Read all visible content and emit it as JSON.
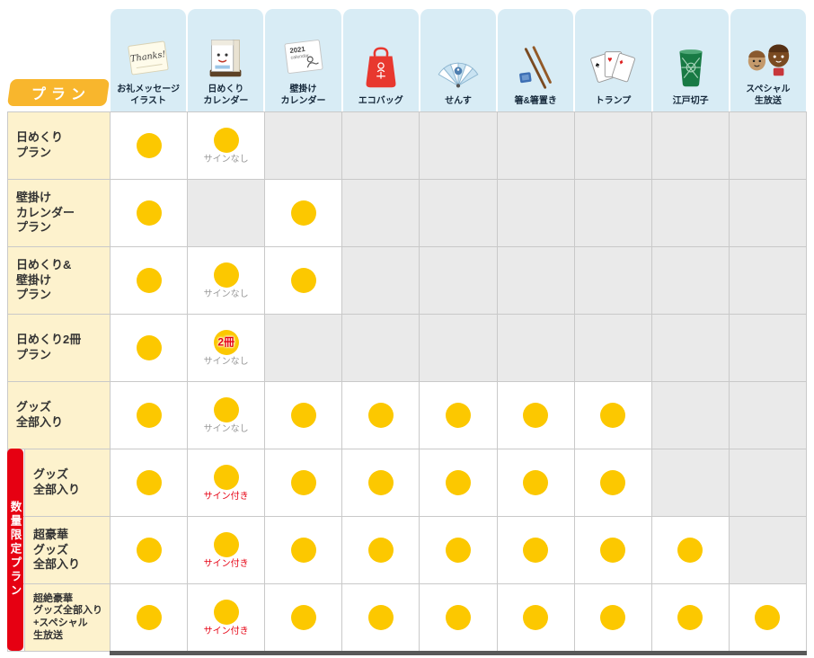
{
  "colors": {
    "dot_yellow": "#FCC800",
    "header_blue": "#D8ECF5",
    "plan_yellow": "#FDF2CD",
    "badge_orange": "#F8B62D",
    "limited_red": "#E60012",
    "empty_gray": "#EAEAEA",
    "note_gray": "#999999",
    "note_red": "#E60012"
  },
  "plan_header": {
    "label": "プラン"
  },
  "limited_section": {
    "label": "数量限定プラン"
  },
  "columns": [
    {
      "label": "お礼メッセージ\nイラスト",
      "icon": "thanks-note-icon"
    },
    {
      "label": "日めくり\nカレンダー",
      "icon": "daily-calendar-icon"
    },
    {
      "label": "壁掛け\nカレンダー",
      "icon": "wall-calendar-icon"
    },
    {
      "label": "エコバッグ",
      "icon": "eco-bag-icon"
    },
    {
      "label": "せんす",
      "icon": "folding-fan-icon"
    },
    {
      "label": "箸&箸置き",
      "icon": "chopsticks-icon"
    },
    {
      "label": "トランプ",
      "icon": "playing-cards-icon"
    },
    {
      "label": "江戸切子",
      "icon": "edo-kiriko-glass-icon"
    },
    {
      "label": "スペシャル\n生放送",
      "icon": "mascots-icon"
    }
  ],
  "rows": [
    {
      "plan": "日めくり\nプラン",
      "limited": false,
      "small": false,
      "cells": [
        {
          "dot": true
        },
        {
          "dot": true,
          "note": "サインなし",
          "note_style": "gray"
        },
        {
          "dot": false
        },
        {
          "dot": false
        },
        {
          "dot": false
        },
        {
          "dot": false
        },
        {
          "dot": false
        },
        {
          "dot": false
        },
        {
          "dot": false
        }
      ]
    },
    {
      "plan": "壁掛け\nカレンダー\nプラン",
      "limited": false,
      "small": false,
      "cells": [
        {
          "dot": true
        },
        {
          "dot": false
        },
        {
          "dot": true
        },
        {
          "dot": false
        },
        {
          "dot": false
        },
        {
          "dot": false
        },
        {
          "dot": false
        },
        {
          "dot": false
        },
        {
          "dot": false
        }
      ]
    },
    {
      "plan": "日めくり&\n壁掛け\nプラン",
      "limited": false,
      "small": false,
      "cells": [
        {
          "dot": true
        },
        {
          "dot": true,
          "note": "サインなし",
          "note_style": "gray"
        },
        {
          "dot": true
        },
        {
          "dot": false
        },
        {
          "dot": false
        },
        {
          "dot": false
        },
        {
          "dot": false
        },
        {
          "dot": false
        },
        {
          "dot": false
        }
      ]
    },
    {
      "plan": "日めくり2冊\nプラン",
      "limited": false,
      "small": false,
      "cells": [
        {
          "dot": true
        },
        {
          "dot": true,
          "badge": "2冊",
          "note": "サインなし",
          "note_style": "gray"
        },
        {
          "dot": false
        },
        {
          "dot": false
        },
        {
          "dot": false
        },
        {
          "dot": false
        },
        {
          "dot": false
        },
        {
          "dot": false
        },
        {
          "dot": false
        }
      ]
    },
    {
      "plan": "グッズ\n全部入り",
      "limited": false,
      "small": false,
      "cells": [
        {
          "dot": true
        },
        {
          "dot": true,
          "note": "サインなし",
          "note_style": "gray"
        },
        {
          "dot": true
        },
        {
          "dot": true
        },
        {
          "dot": true
        },
        {
          "dot": true
        },
        {
          "dot": true
        },
        {
          "dot": false
        },
        {
          "dot": false
        }
      ]
    },
    {
      "plan": "グッズ\n全部入り",
      "limited": true,
      "small": false,
      "cells": [
        {
          "dot": true
        },
        {
          "dot": true,
          "note": "サイン付き",
          "note_style": "red"
        },
        {
          "dot": true
        },
        {
          "dot": true
        },
        {
          "dot": true
        },
        {
          "dot": true
        },
        {
          "dot": true
        },
        {
          "dot": false
        },
        {
          "dot": false
        }
      ]
    },
    {
      "plan": "超豪華\nグッズ\n全部入り",
      "limited": true,
      "small": false,
      "cells": [
        {
          "dot": true
        },
        {
          "dot": true,
          "note": "サイン付き",
          "note_style": "red"
        },
        {
          "dot": true
        },
        {
          "dot": true
        },
        {
          "dot": true
        },
        {
          "dot": true
        },
        {
          "dot": true
        },
        {
          "dot": true
        },
        {
          "dot": false
        }
      ]
    },
    {
      "plan": "超絶豪華\nグッズ全部入り\n+スペシャル\n生放送",
      "limited": true,
      "small": true,
      "cells": [
        {
          "dot": true
        },
        {
          "dot": true,
          "note": "サイン付き",
          "note_style": "red"
        },
        {
          "dot": true
        },
        {
          "dot": true
        },
        {
          "dot": true
        },
        {
          "dot": true
        },
        {
          "dot": true
        },
        {
          "dot": true
        },
        {
          "dot": true
        }
      ]
    }
  ],
  "chart_data": {
    "type": "table",
    "title": "",
    "columns": [
      "お礼メッセージイラスト",
      "日めくりカレンダー",
      "壁掛けカレンダー",
      "エコバッグ",
      "せんす",
      "箸&箸置き",
      "トランプ",
      "江戸切子",
      "スペシャル生放送"
    ],
    "rows": [
      {
        "plan": "日めくりプラン",
        "included": [
          1,
          1,
          0,
          0,
          0,
          0,
          0,
          0,
          0
        ],
        "calendar_note": "サインなし"
      },
      {
        "plan": "壁掛けカレンダープラン",
        "included": [
          1,
          0,
          1,
          0,
          0,
          0,
          0,
          0,
          0
        ]
      },
      {
        "plan": "日めくり&壁掛けプラン",
        "included": [
          1,
          1,
          1,
          0,
          0,
          0,
          0,
          0,
          0
        ],
        "calendar_note": "サインなし"
      },
      {
        "plan": "日めくり2冊プラン",
        "included": [
          1,
          1,
          0,
          0,
          0,
          0,
          0,
          0,
          0
        ],
        "calendar_note": "サインなし",
        "quantity": "2冊"
      },
      {
        "plan": "グッズ全部入り",
        "included": [
          1,
          1,
          1,
          1,
          1,
          1,
          1,
          0,
          0
        ],
        "calendar_note": "サインなし"
      },
      {
        "plan": "グッズ全部入り（数量限定プラン）",
        "included": [
          1,
          1,
          1,
          1,
          1,
          1,
          1,
          0,
          0
        ],
        "calendar_note": "サイン付き"
      },
      {
        "plan": "超豪華グッズ全部入り（数量限定プラン）",
        "included": [
          1,
          1,
          1,
          1,
          1,
          1,
          1,
          1,
          0
        ],
        "calendar_note": "サイン付き"
      },
      {
        "plan": "超絶豪華グッズ全部入り+スペシャル生放送（数量限定プラン）",
        "included": [
          1,
          1,
          1,
          1,
          1,
          1,
          1,
          1,
          1
        ],
        "calendar_note": "サイン付き"
      }
    ]
  }
}
